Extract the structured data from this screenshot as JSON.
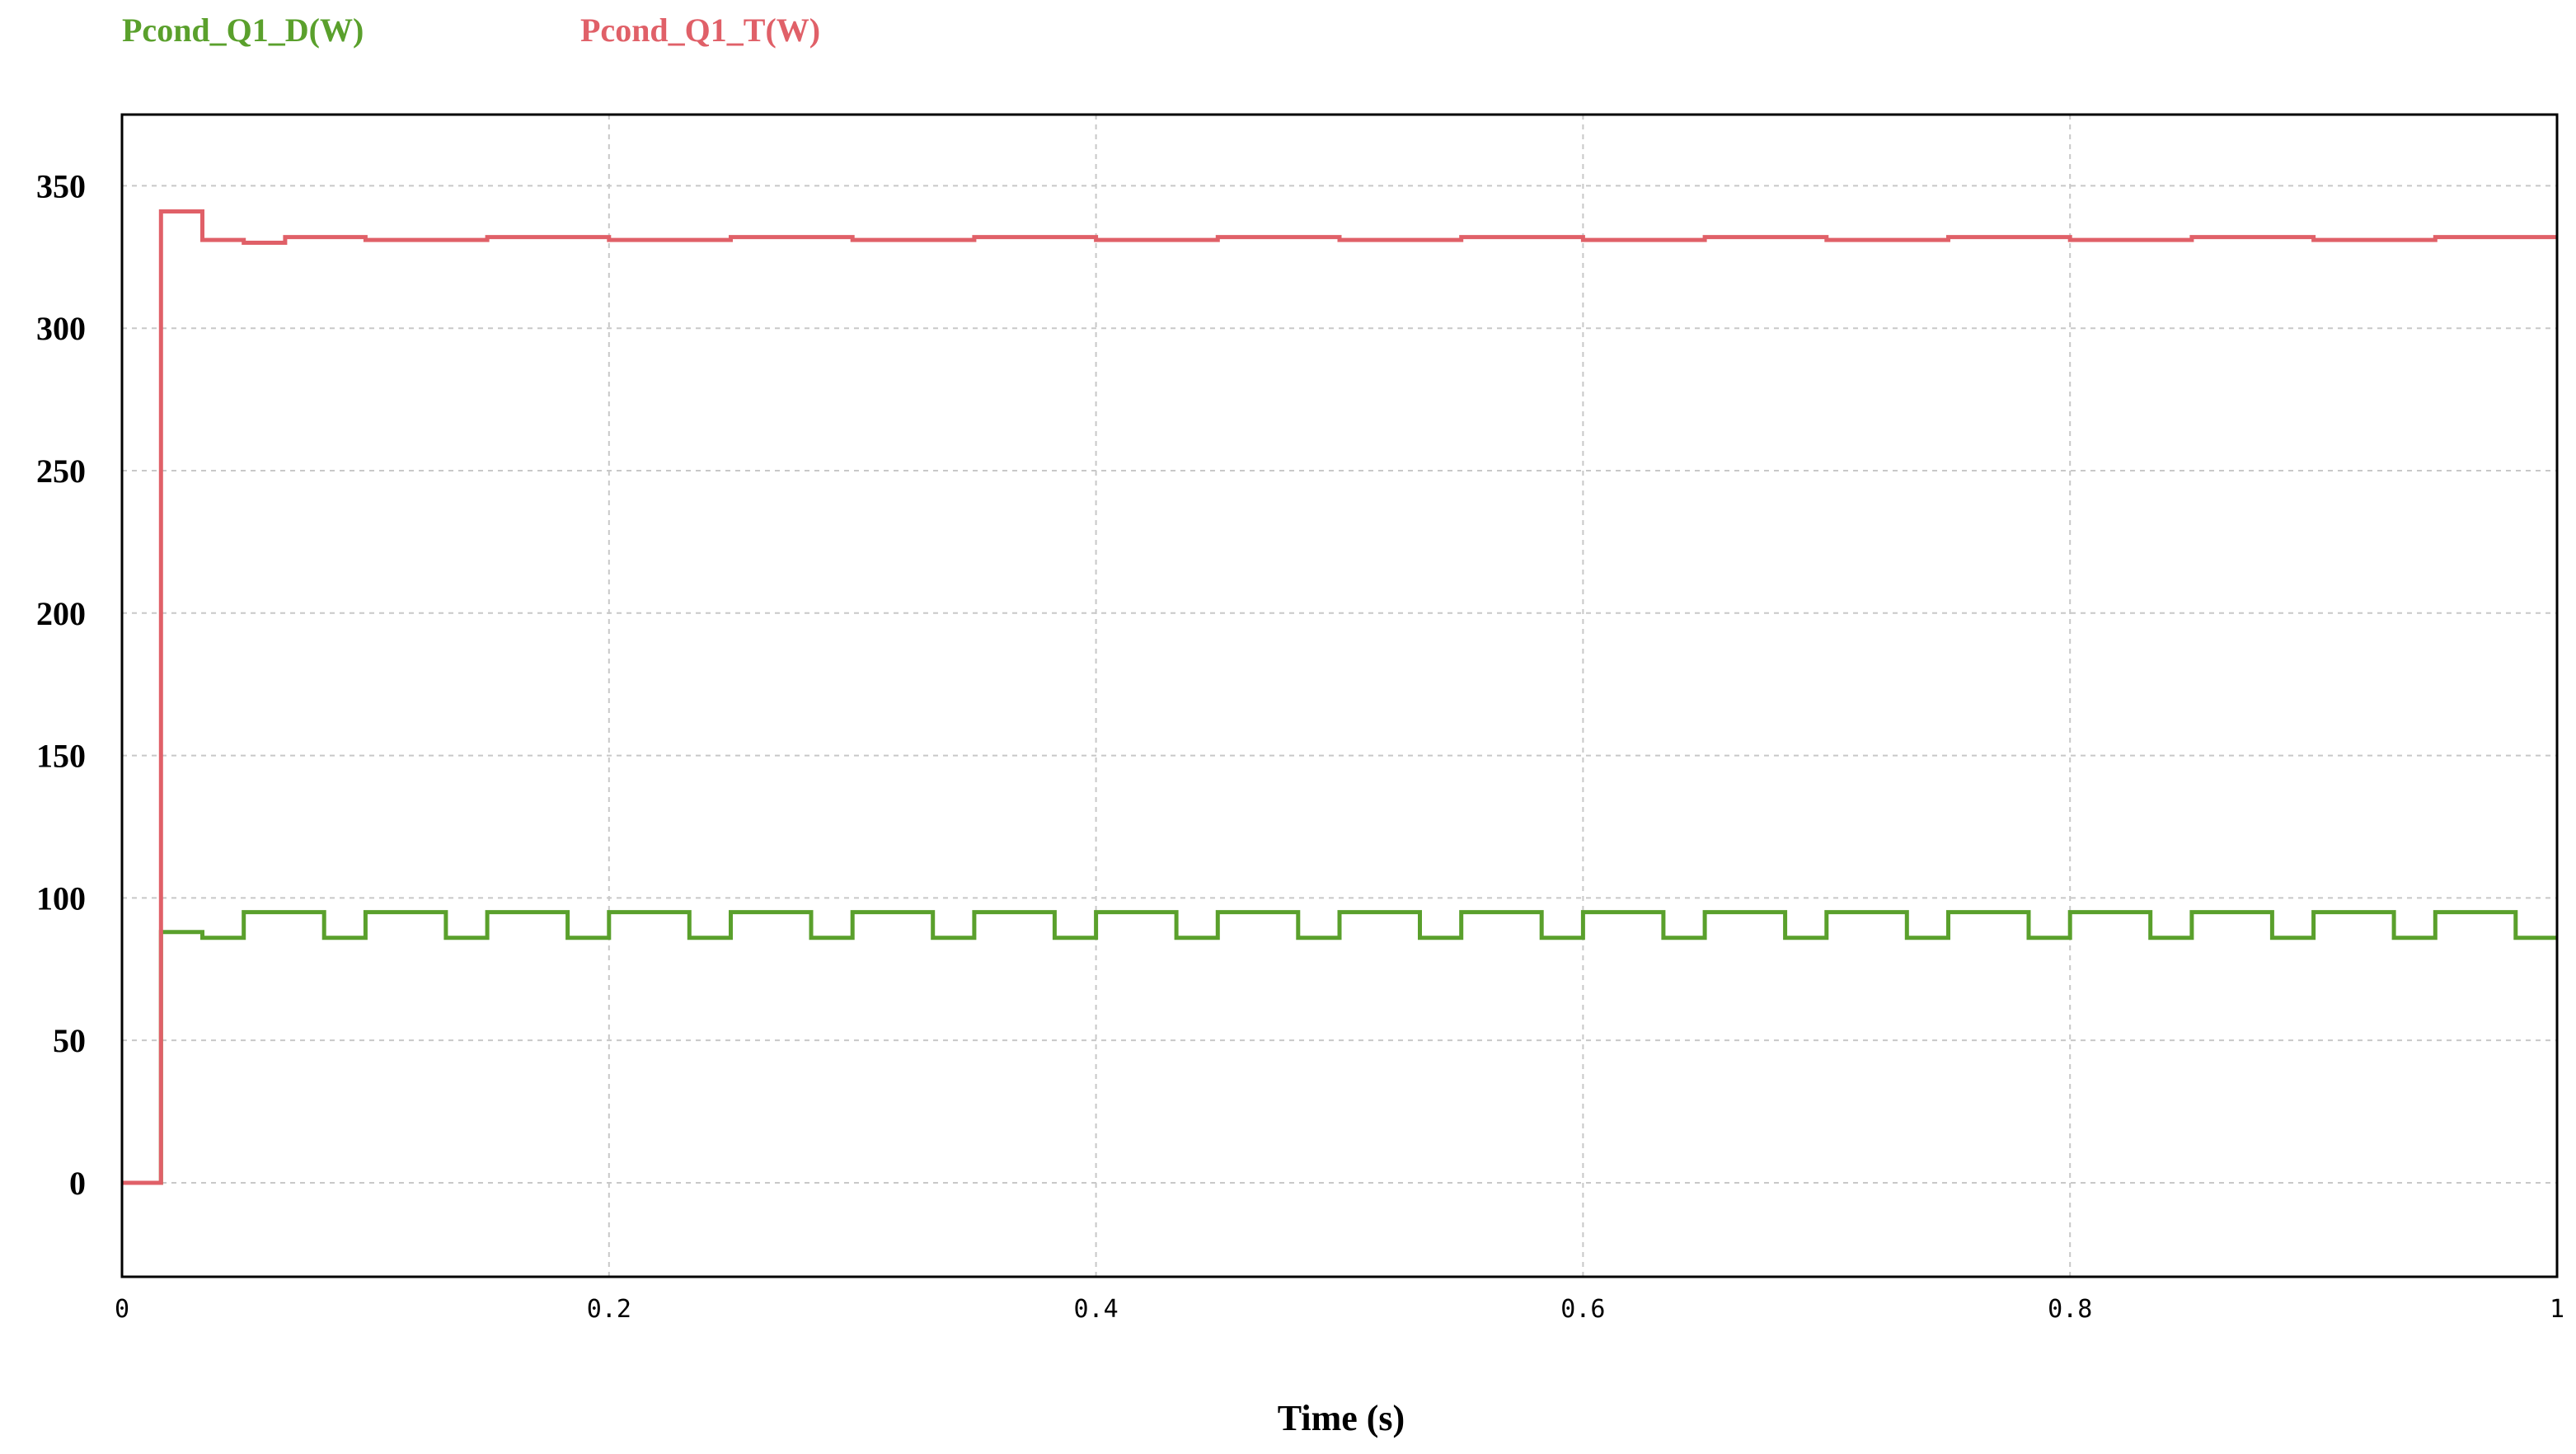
{
  "chart_data": {
    "type": "line",
    "title": "",
    "xlabel": "Time (s)",
    "ylabel": "",
    "xlim": [
      0,
      1
    ],
    "ylim": [
      -33,
      375
    ],
    "grid": true,
    "legend_position": "top-left",
    "x_ticks": [
      0,
      0.2,
      0.4,
      0.6,
      0.8,
      1
    ],
    "x_tick_labels": [
      "0",
      "0.2",
      "0.4",
      "0.6",
      "0.8",
      "1"
    ],
    "y_ticks": [
      0,
      50,
      100,
      150,
      200,
      250,
      300,
      350
    ],
    "y_tick_labels": [
      "0",
      "50",
      "100",
      "150",
      "200",
      "250",
      "300",
      "350"
    ],
    "series": [
      {
        "name": "Pcond_Q1_D(W)",
        "color": "#5aa02c",
        "x": [
          0,
          0.016,
          0.016,
          0.033,
          0.033,
          0.05,
          0.05,
          0.083,
          0.083,
          0.1,
          0.1,
          0.133,
          0.133,
          0.15,
          0.15,
          0.183,
          0.183,
          0.2,
          0.2,
          0.233,
          0.233,
          0.25,
          0.25,
          0.283,
          0.283,
          0.3,
          0.3,
          0.333,
          0.333,
          0.35,
          0.35,
          0.383,
          0.383,
          0.4,
          0.4,
          0.433,
          0.433,
          0.45,
          0.45,
          0.483,
          0.483,
          0.5,
          0.5,
          0.533,
          0.533,
          0.55,
          0.55,
          0.583,
          0.583,
          0.6,
          0.6,
          0.633,
          0.633,
          0.65,
          0.65,
          0.683,
          0.683,
          0.7,
          0.7,
          0.733,
          0.733,
          0.75,
          0.75,
          0.783,
          0.783,
          0.8,
          0.8,
          0.833,
          0.833,
          0.85,
          0.85,
          0.883,
          0.883,
          0.9,
          0.9,
          0.933,
          0.933,
          0.95,
          0.95,
          0.983,
          0.983,
          1
        ],
        "y": [
          0,
          0,
          88,
          88,
          86,
          86,
          95,
          95,
          86,
          86,
          95,
          95,
          86,
          86,
          95,
          95,
          86,
          86,
          95,
          95,
          86,
          86,
          95,
          95,
          86,
          86,
          95,
          95,
          86,
          86,
          95,
          95,
          86,
          86,
          95,
          95,
          86,
          86,
          95,
          95,
          86,
          86,
          95,
          95,
          86,
          86,
          95,
          95,
          86,
          86,
          95,
          95,
          86,
          86,
          95,
          95,
          86,
          86,
          95,
          95,
          86,
          86,
          95,
          95,
          86,
          86,
          95,
          95,
          86,
          86,
          95,
          95,
          86,
          86,
          95,
          95,
          86,
          86,
          95,
          95,
          86,
          86
        ]
      },
      {
        "name": "Pcond_Q1_T(W)",
        "color": "#e06068",
        "x": [
          0,
          0.016,
          0.016,
          0.033,
          0.033,
          0.05,
          0.05,
          0.067,
          0.067,
          0.1,
          0.1,
          0.15,
          0.15,
          0.2,
          0.2,
          0.25,
          0.25,
          0.3,
          0.3,
          0.35,
          0.35,
          0.4,
          0.4,
          0.45,
          0.45,
          0.5,
          0.5,
          0.55,
          0.55,
          0.6,
          0.6,
          0.65,
          0.65,
          0.7,
          0.7,
          0.75,
          0.75,
          0.8,
          0.8,
          0.85,
          0.85,
          0.9,
          0.9,
          0.95,
          0.95,
          1
        ],
        "y": [
          0,
          0,
          341,
          341,
          331,
          331,
          330,
          330,
          332,
          332,
          331,
          331,
          332,
          332,
          331,
          331,
          332,
          332,
          331,
          331,
          332,
          332,
          331,
          331,
          332,
          332,
          331,
          331,
          332,
          332,
          331,
          331,
          332,
          332,
          331,
          331,
          332,
          332,
          331,
          331,
          332,
          332,
          331,
          331,
          332,
          332
        ]
      }
    ]
  }
}
